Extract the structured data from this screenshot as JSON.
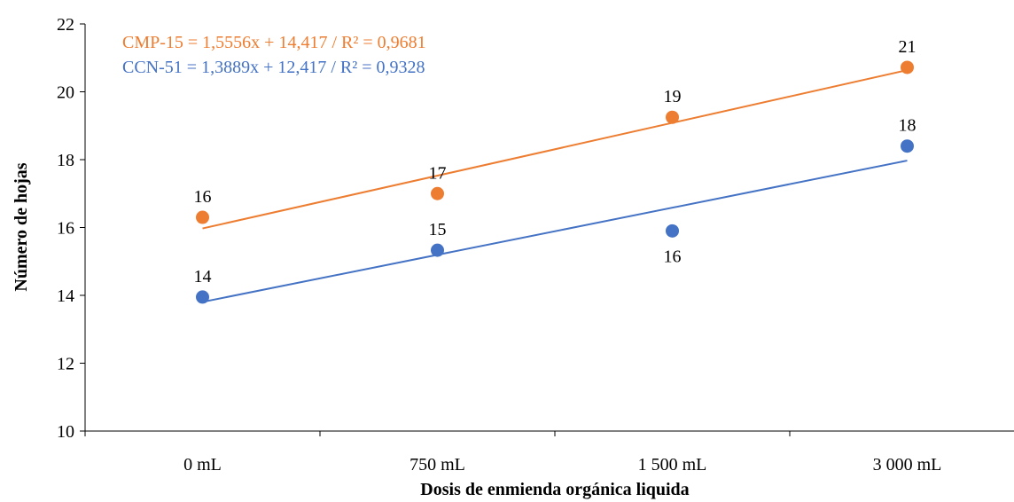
{
  "chart_data": {
    "type": "scatter",
    "categories": [
      "0 mL",
      "750 mL",
      "1 500 mL",
      "3 000 mL"
    ],
    "xlabel": "Dosis de enmienda orgánica liquida",
    "ylabel": "Número de hojas",
    "ylim": [
      10,
      22
    ],
    "yticks": [
      10,
      12,
      14,
      16,
      18,
      20,
      22
    ],
    "grid": false,
    "series": [
      {
        "name": "CMP-15",
        "color": "#ED7D31",
        "values": [
          16.3,
          17.0,
          19.25,
          20.72
        ],
        "data_labels": [
          "16",
          "17",
          "19",
          "21"
        ],
        "label_position": [
          "above",
          "above",
          "above",
          "above"
        ],
        "trendline": {
          "slope": 1.5556,
          "intercept": 14.417,
          "r2": 0.9681
        },
        "equation_text": "CMP-15 = 1,5556x + 14,417 / R² = 0,9681"
      },
      {
        "name": "CCN-51",
        "color": "#4472C4",
        "values": [
          13.95,
          15.33,
          15.9,
          18.4
        ],
        "data_labels": [
          "14",
          "15",
          "16",
          "18"
        ],
        "label_position": [
          "above",
          "above",
          "below",
          "above"
        ],
        "trendline": {
          "slope": 1.3889,
          "intercept": 12.417,
          "r2": 0.9328
        },
        "equation_text": "CCN-51 = 1,3889x + 12,417 / R² = 0,9328"
      }
    ]
  }
}
